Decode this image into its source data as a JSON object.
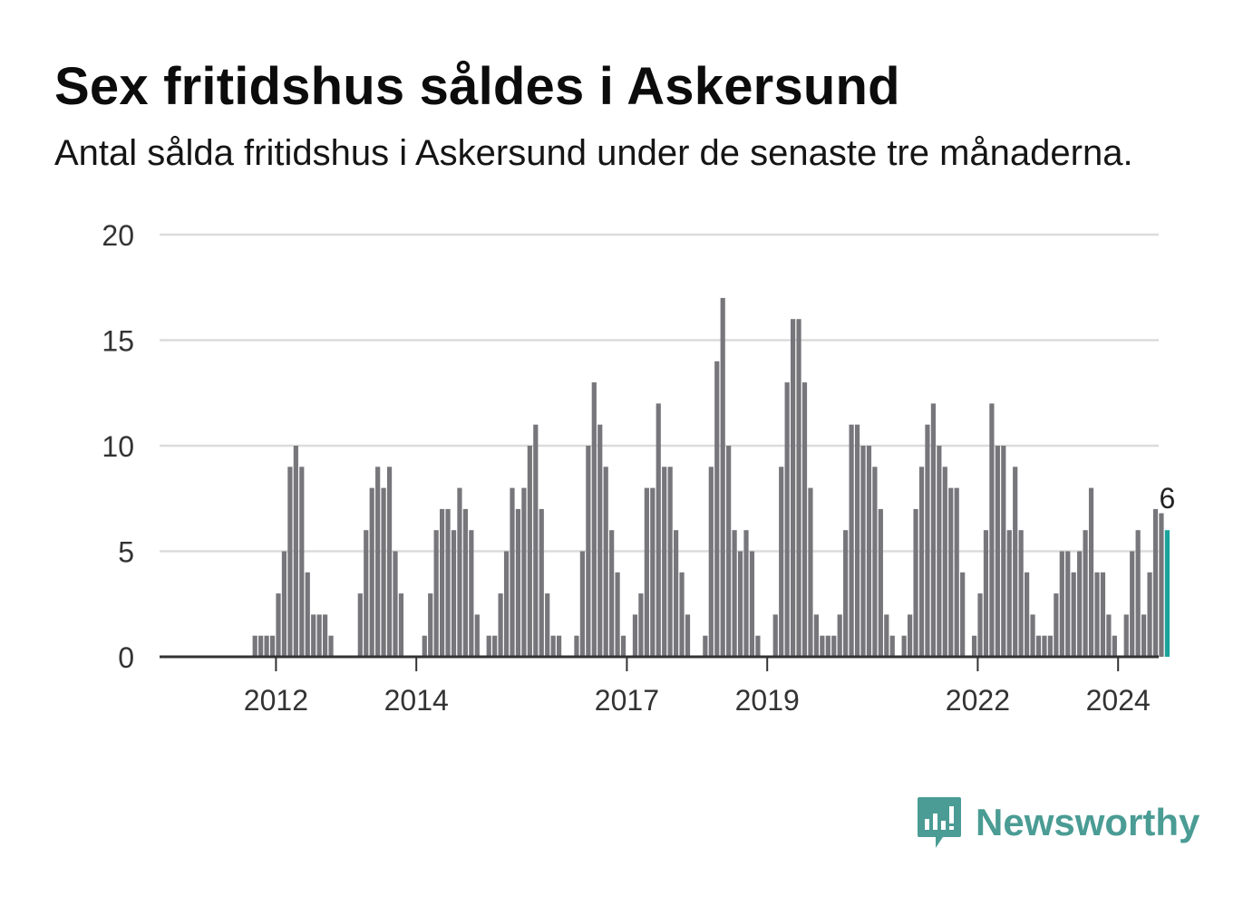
{
  "title": "Sex fritidshus såldes i Askersund",
  "subtitle": "Antal sålda fritidshus i Askersund under de senaste tre månaderna.",
  "brand": {
    "name": "Newsworthy",
    "icon": "newsworthy-logo-icon",
    "color": "#4a9c94"
  },
  "chart_data": {
    "type": "bar",
    "x_start": "2011-01",
    "x_tick_labels": [
      "2012",
      "2014",
      "2017",
      "2019",
      "2022",
      "2024"
    ],
    "y_ticks": [
      0,
      5,
      10,
      15,
      20
    ],
    "ylim": [
      0,
      20
    ],
    "grid": true,
    "bar_color": "#76767b",
    "highlight_color": "#1aa39a",
    "highlight_label": "6",
    "values": [
      0,
      0,
      0,
      0,
      0,
      0,
      0,
      0,
      1,
      1,
      1,
      1,
      3,
      5,
      9,
      10,
      9,
      4,
      2,
      2,
      2,
      1,
      0,
      0,
      0,
      0,
      3,
      6,
      8,
      9,
      8,
      9,
      5,
      3,
      0,
      0,
      0,
      1,
      3,
      6,
      7,
      7,
      6,
      8,
      7,
      6,
      2,
      0,
      1,
      1,
      3,
      5,
      8,
      7,
      8,
      10,
      11,
      7,
      3,
      1,
      1,
      0,
      0,
      1,
      5,
      10,
      13,
      11,
      9,
      6,
      4,
      1,
      0,
      2,
      3,
      8,
      8,
      12,
      9,
      9,
      6,
      4,
      2,
      0,
      0,
      1,
      9,
      14,
      17,
      10,
      6,
      5,
      6,
      5,
      1,
      0,
      0,
      2,
      9,
      13,
      16,
      16,
      13,
      8,
      2,
      1,
      1,
      1,
      2,
      6,
      11,
      11,
      10,
      10,
      9,
      7,
      2,
      1,
      0,
      1,
      2,
      7,
      9,
      11,
      12,
      10,
      9,
      8,
      8,
      4,
      0,
      1,
      3,
      6,
      12,
      10,
      10,
      6,
      9,
      6,
      4,
      2,
      1,
      1,
      1,
      3,
      5,
      5,
      4,
      5,
      6,
      8,
      4,
      4,
      2,
      1,
      0,
      2,
      5,
      6,
      2,
      4,
      7,
      6.8,
      6
    ]
  }
}
